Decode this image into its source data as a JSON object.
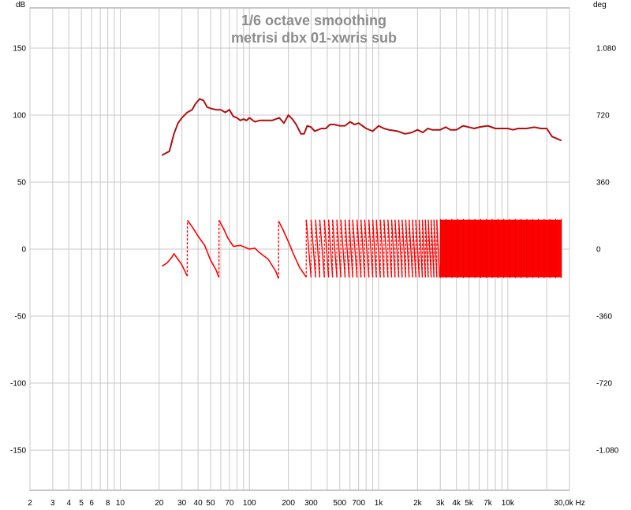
{
  "chart_data": {
    "type": "line",
    "title": "1/6 octave smoothing",
    "subtitle": "metrisi dbx 01-xwris sub",
    "left_axis_unit": "dB",
    "right_axis_unit": "deg",
    "x_unit": "Hz",
    "xscale": "log",
    "xlim": [
      2,
      30000
    ],
    "ylim": [
      -180,
      180
    ],
    "right_ylim": [
      -1296,
      1296
    ],
    "grid": true,
    "x_tick_labels": [
      {
        "v": 2,
        "t": "2"
      },
      {
        "v": 3,
        "t": "3"
      },
      {
        "v": 4,
        "t": "4"
      },
      {
        "v": 5,
        "t": "5"
      },
      {
        "v": 6,
        "t": "6"
      },
      {
        "v": 8,
        "t": "8"
      },
      {
        "v": 10,
        "t": "10"
      },
      {
        "v": 20,
        "t": "20"
      },
      {
        "v": 30,
        "t": "30"
      },
      {
        "v": 40,
        "t": "40"
      },
      {
        "v": 50,
        "t": "50"
      },
      {
        "v": 70,
        "t": "70"
      },
      {
        "v": 100,
        "t": "100"
      },
      {
        "v": 200,
        "t": "200"
      },
      {
        "v": 300,
        "t": "300"
      },
      {
        "v": 500,
        "t": "500"
      },
      {
        "v": 700,
        "t": "700"
      },
      {
        "v": 1000,
        "t": "1k"
      },
      {
        "v": 2000,
        "t": "2k"
      },
      {
        "v": 3000,
        "t": "3k"
      },
      {
        "v": 4000,
        "t": "4k"
      },
      {
        "v": 5000,
        "t": "5k"
      },
      {
        "v": 7000,
        "t": "7k"
      },
      {
        "v": 10000,
        "t": "10k"
      },
      {
        "v": 30000,
        "t": "30,0k Hz"
      }
    ],
    "left_ticks": [
      {
        "v": 150,
        "t": "150"
      },
      {
        "v": 100,
        "t": "100"
      },
      {
        "v": 50,
        "t": "50"
      },
      {
        "v": 0,
        "t": "0"
      },
      {
        "v": -50,
        "t": "-50"
      },
      {
        "v": -100,
        "t": "-100"
      },
      {
        "v": -150,
        "t": "-150"
      }
    ],
    "right_ticks": [
      {
        "v": 1080,
        "t": "1.080"
      },
      {
        "v": 720,
        "t": "720"
      },
      {
        "v": 360,
        "t": "360"
      },
      {
        "v": 0,
        "t": "0"
      },
      {
        "v": -360,
        "t": "-360"
      },
      {
        "v": -720,
        "t": "-720"
      },
      {
        "v": -1080,
        "t": "-1.080"
      }
    ],
    "series": [
      {
        "name": "",
        "color": "#b01010",
        "axis": "left",
        "x": [
          21,
          24,
          26,
          28,
          30,
          33,
          36,
          38,
          41,
          44,
          47,
          50,
          55,
          60,
          65,
          70,
          75,
          80,
          85,
          90,
          95,
          100,
          110,
          120,
          130,
          150,
          170,
          185,
          200,
          215,
          230,
          250,
          265,
          280,
          300,
          320,
          340,
          360,
          390,
          420,
          450,
          500,
          550,
          600,
          650,
          700,
          800,
          900,
          1000,
          1100,
          1200,
          1400,
          1600,
          1800,
          2000,
          2200,
          2400,
          2600,
          3000,
          3300,
          3600,
          4000,
          4500,
          5000,
          5500,
          6000,
          7000,
          8000,
          9000,
          10000,
          11000,
          12000,
          14000,
          16000,
          18000,
          20000,
          22000,
          26000
        ],
        "y": [
          70,
          73,
          86,
          94,
          98,
          102,
          104,
          108,
          112,
          111,
          106,
          105,
          104,
          104,
          102,
          104,
          99,
          98,
          96,
          97,
          96,
          98,
          95,
          96,
          96,
          96,
          98,
          94,
          100,
          97,
          93,
          86,
          86,
          92,
          91,
          88,
          89,
          90,
          90,
          93,
          93,
          92,
          92,
          95,
          93,
          94,
          90,
          88,
          92,
          90,
          89,
          88,
          86,
          87,
          89,
          87,
          90,
          89,
          89,
          91,
          89,
          89,
          92,
          91,
          90,
          91,
          92,
          90,
          90,
          90,
          89,
          90,
          90,
          91,
          90,
          90,
          84,
          81
        ]
      },
      {
        "name": "",
        "color": "#ff0000",
        "axis": "right",
        "x": [
          21,
          23,
          25,
          26,
          28,
          30,
          33,
          33.1,
          36,
          40,
          45,
          50,
          55,
          58,
          58.1,
          63,
          68,
          75,
          85,
          100,
          110,
          120,
          140,
          160,
          168,
          168.1,
          180,
          200,
          220,
          245,
          275
        ],
        "y": [
          -92,
          -75,
          -45,
          -25,
          -55,
          -85,
          -145,
          155,
          120,
          70,
          20,
          -60,
          -110,
          -152,
          155,
          110,
          60,
          15,
          20,
          0,
          5,
          -20,
          -55,
          -120,
          -158,
          150,
          110,
          40,
          -30,
          -100,
          -150
        ],
        "note_high": "phase wraps between -180 and +180 deg repeatedly above 275 Hz",
        "wrap_x": [
          275,
          300,
          325,
          350,
          380,
          410,
          440,
          475,
          510,
          550,
          590,
          630,
          680,
          730,
          780,
          840,
          900,
          960,
          1030,
          1100,
          1180,
          1260,
          1340,
          1430,
          1520,
          1620,
          1720,
          1830,
          1940,
          2060,
          2180,
          2300,
          2420,
          2550,
          2680,
          2820,
          2960
        ],
        "dense_band": {
          "x": [
            3000,
            26000
          ],
          "min_deg": -152,
          "max_deg": 158
        }
      }
    ]
  }
}
